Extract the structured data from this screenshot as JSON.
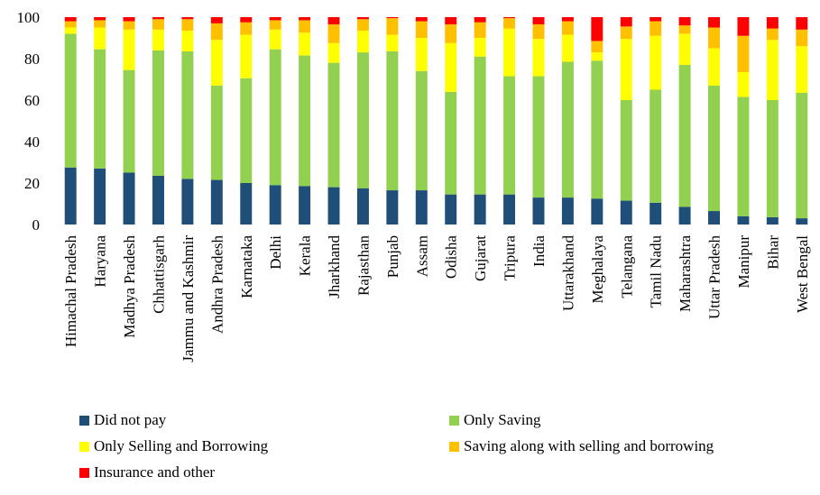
{
  "chart_data": {
    "type": "bar",
    "stacked": true,
    "categories": [
      "Himachal Pradesh",
      "Haryana",
      "Madhya Pradesh",
      "Chhattisgarh",
      "Jammu and Kashmir",
      "Andhra Pradesh",
      "Karnataka",
      "Delhi",
      "Kerala",
      "Jharkhand",
      "Rajasthan",
      "Punjab",
      "Assam",
      "Odisha",
      "Gujarat",
      "Tripura",
      "India",
      "Uttarakhand",
      "Meghalaya",
      "Telangana",
      "Tamil Nadu",
      "Maharashtra",
      "Uttar Pradesh",
      "Manipur",
      "Bihar",
      "West Bengal"
    ],
    "series": [
      {
        "name": "Did not pay",
        "color": "#1f4e79",
        "values": [
          27.5,
          27,
          25,
          23.5,
          22,
          21.5,
          20,
          19,
          18.5,
          18,
          17.5,
          16.5,
          16.5,
          14.5,
          14.5,
          14.5,
          13,
          13,
          12.5,
          11.5,
          10.5,
          8.5,
          6.5,
          4,
          3.5,
          3
        ]
      },
      {
        "name": "Only Saving",
        "color": "#92d050",
        "values": [
          64.5,
          57.5,
          49.5,
          60.5,
          61.5,
          45.5,
          50.5,
          65.5,
          63,
          60,
          65.5,
          67,
          57.5,
          49.5,
          66.5,
          57,
          58.5,
          65.5,
          66.5,
          48.5,
          54.5,
          68.5,
          60.5,
          57.5,
          56.5,
          60.5
        ]
      },
      {
        "name": "Only Selling and Borrowing",
        "color": "#ffff00",
        "values": [
          3,
          10.5,
          19.5,
          10,
          10,
          22,
          21,
          9.5,
          11,
          9.5,
          10.5,
          8,
          16,
          23.5,
          9,
          23,
          18,
          13,
          4,
          29.5,
          26,
          15,
          18,
          12,
          29,
          22.5
        ]
      },
      {
        "name": "Saving along with selling and borrowing",
        "color": "#ffc000",
        "values": [
          3,
          3.5,
          4,
          5,
          5.5,
          8,
          6,
          4.5,
          6,
          9,
          5.5,
          8,
          8,
          9,
          7.5,
          5,
          7,
          6.5,
          5.5,
          6,
          7,
          4,
          10,
          17.5,
          5.5,
          8
        ]
      },
      {
        "name": "Insurance and other",
        "color": "#ff0000",
        "values": [
          2,
          1.5,
          2,
          1,
          1,
          3,
          2.5,
          1.5,
          1.5,
          3.5,
          1,
          0.5,
          2,
          3.5,
          2.5,
          0.5,
          3.5,
          2,
          11.5,
          4.5,
          2,
          4,
          5,
          9,
          5.5,
          6
        ]
      }
    ],
    "ylim": [
      0,
      100
    ],
    "yticks": [
      0,
      20,
      40,
      60,
      80,
      100
    ],
    "xlabel": "",
    "ylabel": "",
    "grid": false,
    "legend_position": "bottom"
  }
}
